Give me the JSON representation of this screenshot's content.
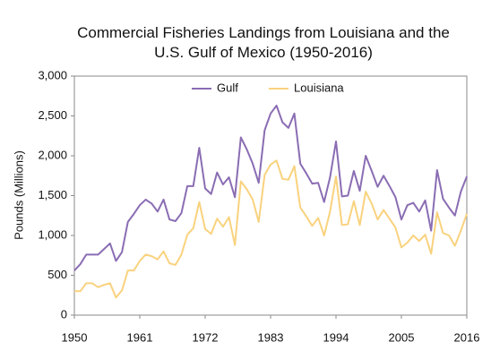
{
  "chart_data": {
    "type": "line",
    "title": "Commercial Fisheries Landings from Louisiana and the U.S. Gulf of Mexico (1950-2016)",
    "y_label": "Pounds (Millions)",
    "x": [
      1950,
      1951,
      1952,
      1953,
      1954,
      1955,
      1956,
      1957,
      1958,
      1959,
      1960,
      1961,
      1962,
      1963,
      1964,
      1965,
      1966,
      1967,
      1968,
      1969,
      1970,
      1971,
      1972,
      1973,
      1974,
      1975,
      1976,
      1977,
      1978,
      1979,
      1980,
      1981,
      1982,
      1983,
      1984,
      1985,
      1986,
      1987,
      1988,
      1989,
      1990,
      1991,
      1992,
      1993,
      1994,
      1995,
      1996,
      1997,
      1998,
      1999,
      2000,
      2001,
      2002,
      2003,
      2004,
      2005,
      2006,
      2007,
      2008,
      2009,
      2010,
      2011,
      2012,
      2013,
      2014,
      2015,
      2016
    ],
    "series": [
      {
        "name": "Gulf",
        "color": "#8a6db3",
        "values": [
          560,
          640,
          760,
          760,
          760,
          830,
          900,
          680,
          790,
          1170,
          1270,
          1380,
          1450,
          1400,
          1300,
          1450,
          1200,
          1180,
          1280,
          1620,
          1620,
          2100,
          1590,
          1520,
          1790,
          1640,
          1730,
          1480,
          2230,
          2080,
          1900,
          1660,
          2320,
          2530,
          2630,
          2420,
          2350,
          2530,
          1900,
          1780,
          1650,
          1660,
          1420,
          1730,
          2180,
          1490,
          1500,
          1810,
          1560,
          2000,
          1810,
          1610,
          1750,
          1620,
          1480,
          1200,
          1380,
          1410,
          1300,
          1440,
          1060,
          1820,
          1460,
          1350,
          1250,
          1550,
          1740
        ]
      },
      {
        "name": "Louisiana",
        "color": "#f9d27e",
        "values": [
          300,
          300,
          400,
          400,
          350,
          380,
          400,
          220,
          310,
          560,
          560,
          680,
          760,
          740,
          700,
          800,
          650,
          630,
          760,
          1010,
          1090,
          1420,
          1080,
          1020,
          1210,
          1110,
          1230,
          880,
          1680,
          1580,
          1450,
          1170,
          1760,
          1890,
          1940,
          1710,
          1700,
          1870,
          1350,
          1240,
          1120,
          1220,
          1000,
          1300,
          1740,
          1130,
          1140,
          1430,
          1130,
          1550,
          1400,
          1200,
          1320,
          1210,
          1100,
          850,
          910,
          1000,
          930,
          1010,
          770,
          1290,
          1030,
          1000,
          870,
          1060,
          1270
        ]
      }
    ],
    "xlim": [
      1950,
      2016
    ],
    "xticks": [
      1950,
      1961,
      1972,
      1983,
      1994,
      2005,
      2016
    ],
    "ylim": [
      0,
      3000
    ],
    "yticks": [
      0,
      500,
      {
        "value": 1000,
        "label": "1,000"
      },
      {
        "value": 1500,
        "label": "1,500"
      },
      {
        "value": 2000,
        "label": "2,000"
      },
      {
        "value": 2500,
        "label": "2,500"
      },
      {
        "value": 3000,
        "label": "3,000"
      }
    ],
    "legend": "top"
  }
}
